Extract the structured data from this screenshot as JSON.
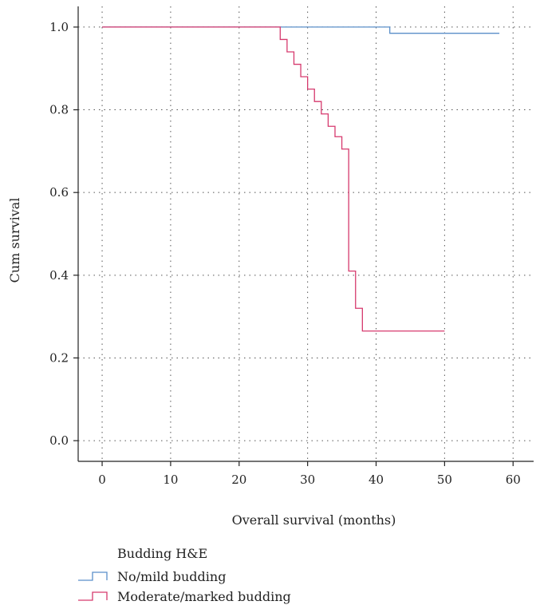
{
  "chart_data": {
    "type": "line",
    "title": "",
    "xlabel": "Overall survival (months)",
    "ylabel": "Cum survival",
    "xlim": [
      -3.5,
      63
    ],
    "ylim": [
      -0.05,
      1.05
    ],
    "xticks": [
      0,
      10,
      20,
      30,
      40,
      50,
      60
    ],
    "xtick_labels": [
      "0",
      "10",
      "20",
      "30",
      "40",
      "50",
      "60"
    ],
    "yticks": [
      0.0,
      0.2,
      0.4,
      0.6,
      0.8,
      1.0
    ],
    "ytick_labels": [
      "0.0",
      "0.2",
      "0.4",
      "0.6",
      "0.8",
      "1.0"
    ],
    "grid": true,
    "step": true,
    "legend": {
      "title": "Budding H&E",
      "placement": "bottom-left"
    },
    "series": [
      {
        "name": "No/mild budding",
        "color": "#5b8fc9",
        "x": [
          0,
          42,
          58
        ],
        "y": [
          1.0,
          0.985,
          0.985
        ]
      },
      {
        "name": "Moderate/marked budding",
        "color": "#d63a6e",
        "x": [
          0,
          26,
          27,
          28,
          29,
          30,
          31,
          32,
          33,
          34,
          35,
          36,
          37,
          38,
          50
        ],
        "y": [
          1.0,
          0.97,
          0.94,
          0.91,
          0.88,
          0.85,
          0.82,
          0.79,
          0.76,
          0.735,
          0.705,
          0.41,
          0.32,
          0.265,
          0.265
        ]
      }
    ]
  }
}
